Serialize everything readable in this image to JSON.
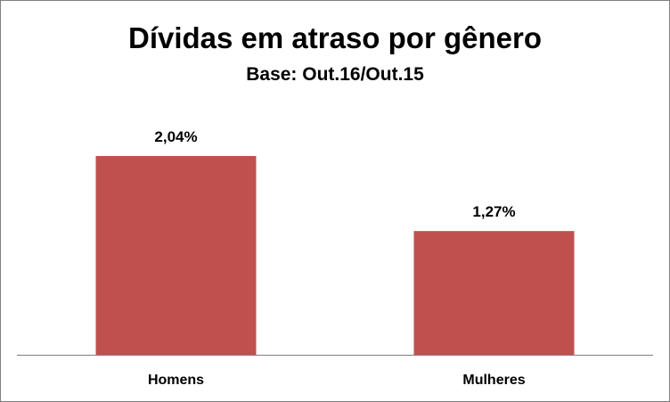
{
  "chart_data": {
    "type": "bar",
    "title": "Dívidas em atraso por gênero",
    "subtitle": "Base: Out.16/Out.15",
    "categories": [
      "Homens",
      "Mulheres"
    ],
    "values": [
      2.04,
      1.27
    ],
    "data_labels": [
      "2,04%",
      "1,27%"
    ],
    "xlabel": "",
    "ylabel": "",
    "ylim": [
      0,
      2.4
    ],
    "grid": false,
    "legend": "none",
    "bar_color": "#c0504d",
    "axis_color": "#7f7f7f"
  }
}
